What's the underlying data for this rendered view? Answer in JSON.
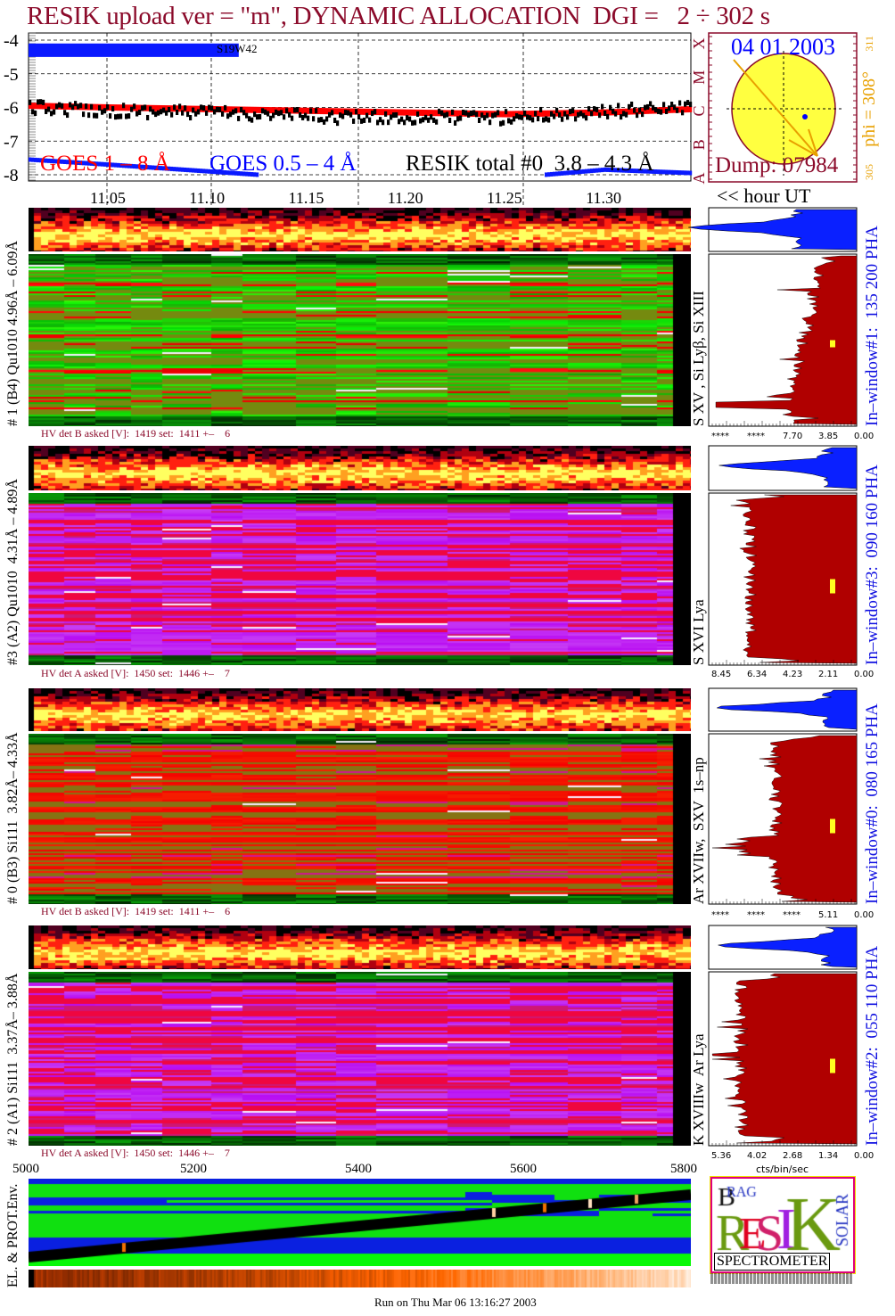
{
  "title": "RESIK upload ver = \"m\", DYNAMIC ALLOCATION  DGI =   2 ÷ 302 s",
  "colors": {
    "title": "#8b0a2a",
    "goes_long": "#ff0000",
    "goes_short": "#0000ff",
    "resik": "#000000",
    "histogram": "#b00000",
    "histogram_top": "#0000ff",
    "disk": "#ffff40",
    "phi": "#e8a000"
  },
  "chart_data": [
    {
      "type": "line",
      "xlabel": "<< hour UT",
      "xticks": [
        "11.05",
        "11.10",
        "11.15",
        "11.20",
        "11.25",
        "11.30"
      ],
      "xlim": [
        11.01,
        11.344
      ],
      "ylim": [
        -8.2,
        -3.9
      ],
      "yticks": [
        "-4",
        "-5",
        "-6",
        "-7",
        "-8"
      ],
      "class_labels": [
        "A",
        "B",
        "C",
        "M",
        "X"
      ],
      "grid": true,
      "event_label": "S19W42",
      "event_bar": {
        "x": [
          11.01,
          11.116
        ],
        "y": [
          -4.5,
          -4.1
        ]
      },
      "series": [
        {
          "name": "GOES 1 – 8 Å",
          "x": [
            11.01,
            11.05,
            11.1,
            11.15,
            11.2,
            11.25,
            11.3,
            11.344
          ],
          "y": [
            -5.95,
            -6.0,
            -6.05,
            -6.1,
            -6.15,
            -6.2,
            -6.15,
            -6.05
          ]
        },
        {
          "name": "GOES 0.5 – 4 Å",
          "x": [
            11.01,
            11.05,
            11.1,
            11.125,
            null,
            11.27,
            11.3,
            11.344
          ],
          "y": [
            -7.55,
            -7.7,
            -7.9,
            -8.0,
            null,
            -8.0,
            -7.85,
            -7.95
          ]
        },
        {
          "name": "RESIK total #0  3.8 – 4.3 Å",
          "x": [
            11.01,
            11.05,
            11.1,
            11.17,
            11.25,
            11.28,
            11.31,
            11.344
          ],
          "y": [
            -6.0,
            -6.1,
            -6.15,
            -6.3,
            -6.3,
            -6.2,
            -6.1,
            -6.0
          ]
        }
      ]
    }
  ],
  "solar_disk": {
    "date": "04 01 2003",
    "dump": "Dump: 07984",
    "phi": "phi = 308°",
    "phi_max": "311",
    "phi_min": "305"
  },
  "hour_label": "<< hour UT",
  "panels": [
    {
      "left_label": "# 1 (B4) Qu1010 4.96Å – 6.09Å",
      "line_label": "S XV , Si Lyβ, Si XIII",
      "hv": "HV det B asked [V]:  1419 set:  1411 +–    6",
      "window": "In–window#1:  135 200 PHA",
      "scale": [
        "****",
        "****",
        "7.70",
        "3.85",
        "0.00"
      ],
      "scheme": "green"
    },
    {
      "left_label": "#3 (A2) Qu1010  4.31Å – 4.89Å",
      "line_label": "S XVI Lya",
      "hv": "HV det A asked [V]:  1450 set:  1446 +–    7",
      "window": "In–window#3:  090 160 PHA",
      "scale": [
        "8.45",
        "6.34",
        "4.23",
        "2.11",
        "0.00"
      ],
      "scheme": "magenta"
    },
    {
      "left_label": "# 0 (B3) Si111  3.82Å– 4.33Å",
      "line_label": "Ar XVIIw,  SXV  1s–np",
      "hv": "HV det B asked [V]:  1419 set:  1411 +–    6",
      "window": "In–window#0:  080 165 PHA",
      "scale": [
        "****",
        "****",
        "****",
        "5.11",
        "0.00"
      ],
      "scheme": "red"
    },
    {
      "left_label": "# 2 (A1) Si111  3.37Å– 3.88Å",
      "line_label": "K XVIIIw  Ar Lya",
      "hv": "HV det A asked [V]:  1450 set:  1446 +–    7",
      "window": "In–window#2:  055 110 PHA",
      "scale": [
        "5.36",
        "4.02",
        "2.68",
        "1.34",
        "0.00"
      ],
      "scheme": "magenta"
    }
  ],
  "hist_unit": "cts/bin/sec",
  "pixel_axis": [
    "5000",
    "5200",
    "5400",
    "5600",
    "5800"
  ],
  "env_label": "EL. & PROT.Env.",
  "logo": {
    "text": "BRAGG RESIK SOLAR SPECTROMETER",
    "caption": "SPECTROMETER"
  },
  "footer": "Run on Thu Mar 06 13:16:27 2003"
}
